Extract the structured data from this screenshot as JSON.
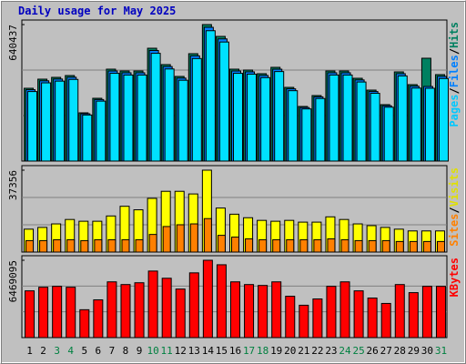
{
  "chart_data": [
    {
      "type": "bar",
      "title": "Daily usage for May 2025",
      "title_color": "#0000c0",
      "separator": "/",
      "ylim": [
        0,
        640437
      ],
      "yticks": [
        640437
      ],
      "series": [
        {
          "name": "Hits",
          "color": "#008060",
          "label_color": "#008060",
          "values": [
            341600,
            384300,
            392800,
            401300,
            226300,
            294600,
            431200,
            422700,
            422700,
            529400,
            452600,
            397100,
            503800,
            640437,
            584900,
            431200,
            427000,
            409900,
            439800,
            345800,
            256200,
            307400,
            422700,
            422700,
            388500,
            333000,
            264700,
            418400,
            358600,
            482500,
            405600
          ]
        },
        {
          "name": "Files",
          "color": "#0080ff",
          "label_color": "#0080ff",
          "values": [
            334800,
            376600,
            384900,
            393300,
            221800,
            288700,
            422600,
            414200,
            414200,
            518800,
            443500,
            389200,
            493700,
            627600,
            573200,
            422600,
            418500,
            401700,
            431000,
            338900,
            251100,
            301300,
            414200,
            414200,
            380700,
            326300,
            259400,
            410000,
            351400,
            350000,
            397500
          ]
        },
        {
          "name": "Pages",
          "color": "#00e0ff",
          "label_color": "#00c8ff",
          "values": [
            326200,
            367000,
            375100,
            383200,
            216100,
            281300,
            411800,
            403700,
            403700,
            505600,
            432200,
            379200,
            481100,
            611600,
            558600,
            411800,
            407800,
            391500,
            420000,
            330200,
            244700,
            293600,
            403700,
            403700,
            371000,
            318000,
            252800,
            399600,
            342500,
            341600,
            387300
          ]
        }
      ]
    },
    {
      "type": "bar",
      "separator": "/",
      "ylim": [
        0,
        37356
      ],
      "yticks": [
        37356
      ],
      "series": [
        {
          "name": "Visits",
          "color": "#ffff00",
          "label_color": "#e0e000",
          "values": [
            10444,
            11248,
            12854,
            14863,
            14060,
            14060,
            16470,
            20888,
            19282,
            24504,
            27717,
            27717,
            26512,
            37356,
            20085,
            17273,
            15666,
            14461,
            14060,
            14461,
            13658,
            13658,
            16068,
            14863,
            12854,
            12051,
            11248,
            10444,
            9641,
            9641,
            9641
          ]
        },
        {
          "name": "Sites",
          "color": "#ff8000",
          "label_color": "#ff8000",
          "values": [
            5222,
            5222,
            5624,
            5624,
            5222,
            5624,
            5624,
            5624,
            5624,
            8034,
            11649,
            12453,
            12854,
            15265,
            7632,
            6829,
            6026,
            5624,
            5624,
            5624,
            5624,
            5624,
            6026,
            5624,
            5222,
            5222,
            5222,
            4820,
            4820,
            4820,
            4820
          ]
        }
      ]
    },
    {
      "type": "bar",
      "ylim": [
        0,
        6469095
      ],
      "yticks": [
        6469095
      ],
      "categories": [
        "1",
        "2",
        "3",
        "4",
        "5",
        "6",
        "7",
        "8",
        "9",
        "10",
        "11",
        "12",
        "13",
        "14",
        "15",
        "16",
        "17",
        "18",
        "19",
        "20",
        "21",
        "22",
        "23",
        "24",
        "25",
        "26",
        "27",
        "28",
        "29",
        "30",
        "31"
      ],
      "category_colors": [
        "#000000",
        "#000000",
        "#008040",
        "#008040",
        "#000000",
        "#000000",
        "#000000",
        "#000000",
        "#000000",
        "#008040",
        "#008040",
        "#000000",
        "#000000",
        "#000000",
        "#000000",
        "#000000",
        "#008040",
        "#008040",
        "#000000",
        "#000000",
        "#000000",
        "#000000",
        "#000000",
        "#008040",
        "#008040",
        "#000000",
        "#000000",
        "#000000",
        "#000000",
        "#000000",
        "#008040"
      ],
      "series": [
        {
          "name": "KBytes",
          "color": "#ff0000",
          "label_color": "#ff0000",
          "values": [
            3911544,
            4212432,
            4287654,
            4212432,
            2331882,
            3159324,
            4663764,
            4438098,
            4588542,
            5566428,
            4964652,
            4061988,
            5415984,
            6469095,
            6093000,
            4663764,
            4438098,
            4362876,
            4663764,
            3460212,
            2707992,
            3234546,
            4287654,
            4663764,
            3911544,
            3309768,
            2858436,
            4438098,
            3761100,
            4287654,
            4287654
          ]
        }
      ]
    }
  ]
}
